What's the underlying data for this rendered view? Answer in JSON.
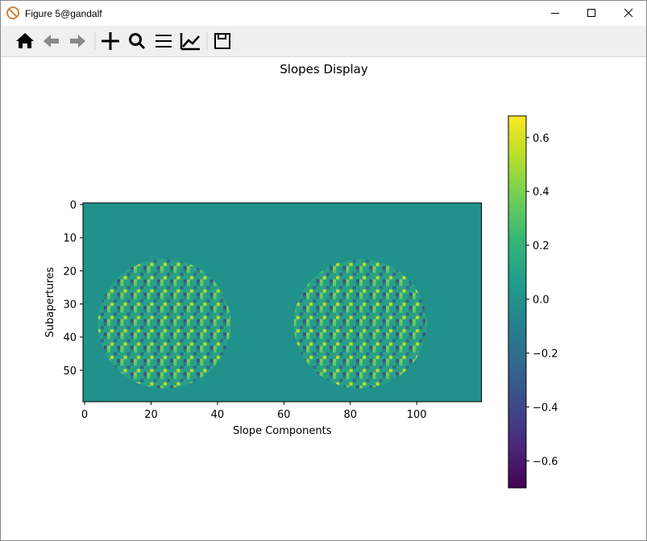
{
  "window": {
    "title": "Figure 5@gandalf"
  },
  "chart_data": {
    "type": "image",
    "title": "Slopes Display",
    "xlabel": "Slope Components",
    "ylabel": "Subapertures",
    "xlim": [
      -0.5,
      119.5
    ],
    "ylim": [
      59.5,
      -0.5
    ],
    "xticks": [
      0,
      20,
      40,
      60,
      80,
      100
    ],
    "yticks": [
      0,
      10,
      20,
      30,
      40,
      50
    ],
    "cmap": "viridis",
    "colorbar": {
      "clim": [
        -0.7,
        0.68
      ],
      "ticks": [
        {
          "value": -0.6,
          "label": "−0.6"
        },
        {
          "value": -0.4,
          "label": "−0.4"
        },
        {
          "value": -0.2,
          "label": "−0.2"
        },
        {
          "value": 0,
          "label": "0.0"
        },
        0.2,
        0.4,
        0.6
      ]
    }
  }
}
